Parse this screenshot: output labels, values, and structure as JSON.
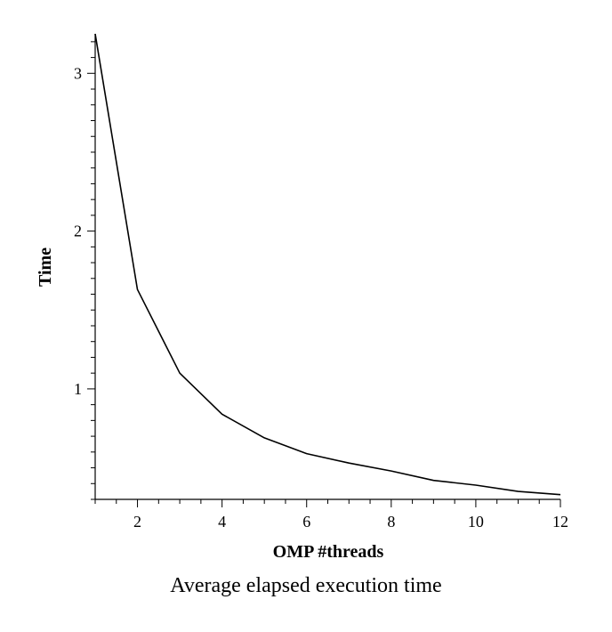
{
  "caption": "Average elapsed execution time",
  "chart_data": {
    "type": "line",
    "title": "",
    "xlabel": "OMP #threads",
    "ylabel": "Time",
    "xlim": [
      1,
      12
    ],
    "ylim": [
      0.3,
      3.25
    ],
    "x_ticks": [
      2,
      4,
      6,
      8,
      10,
      12
    ],
    "y_ticks": [
      1,
      2,
      3
    ],
    "grid": false,
    "legend": "none",
    "line_color": "#000000",
    "series": [
      {
        "x": [
          1,
          2,
          3,
          4,
          5,
          6,
          7,
          8,
          9,
          10,
          11,
          12
        ],
        "values": [
          3.25,
          1.63,
          1.1,
          0.84,
          0.69,
          0.59,
          0.53,
          0.48,
          0.42,
          0.39,
          0.35,
          0.33
        ]
      }
    ]
  }
}
